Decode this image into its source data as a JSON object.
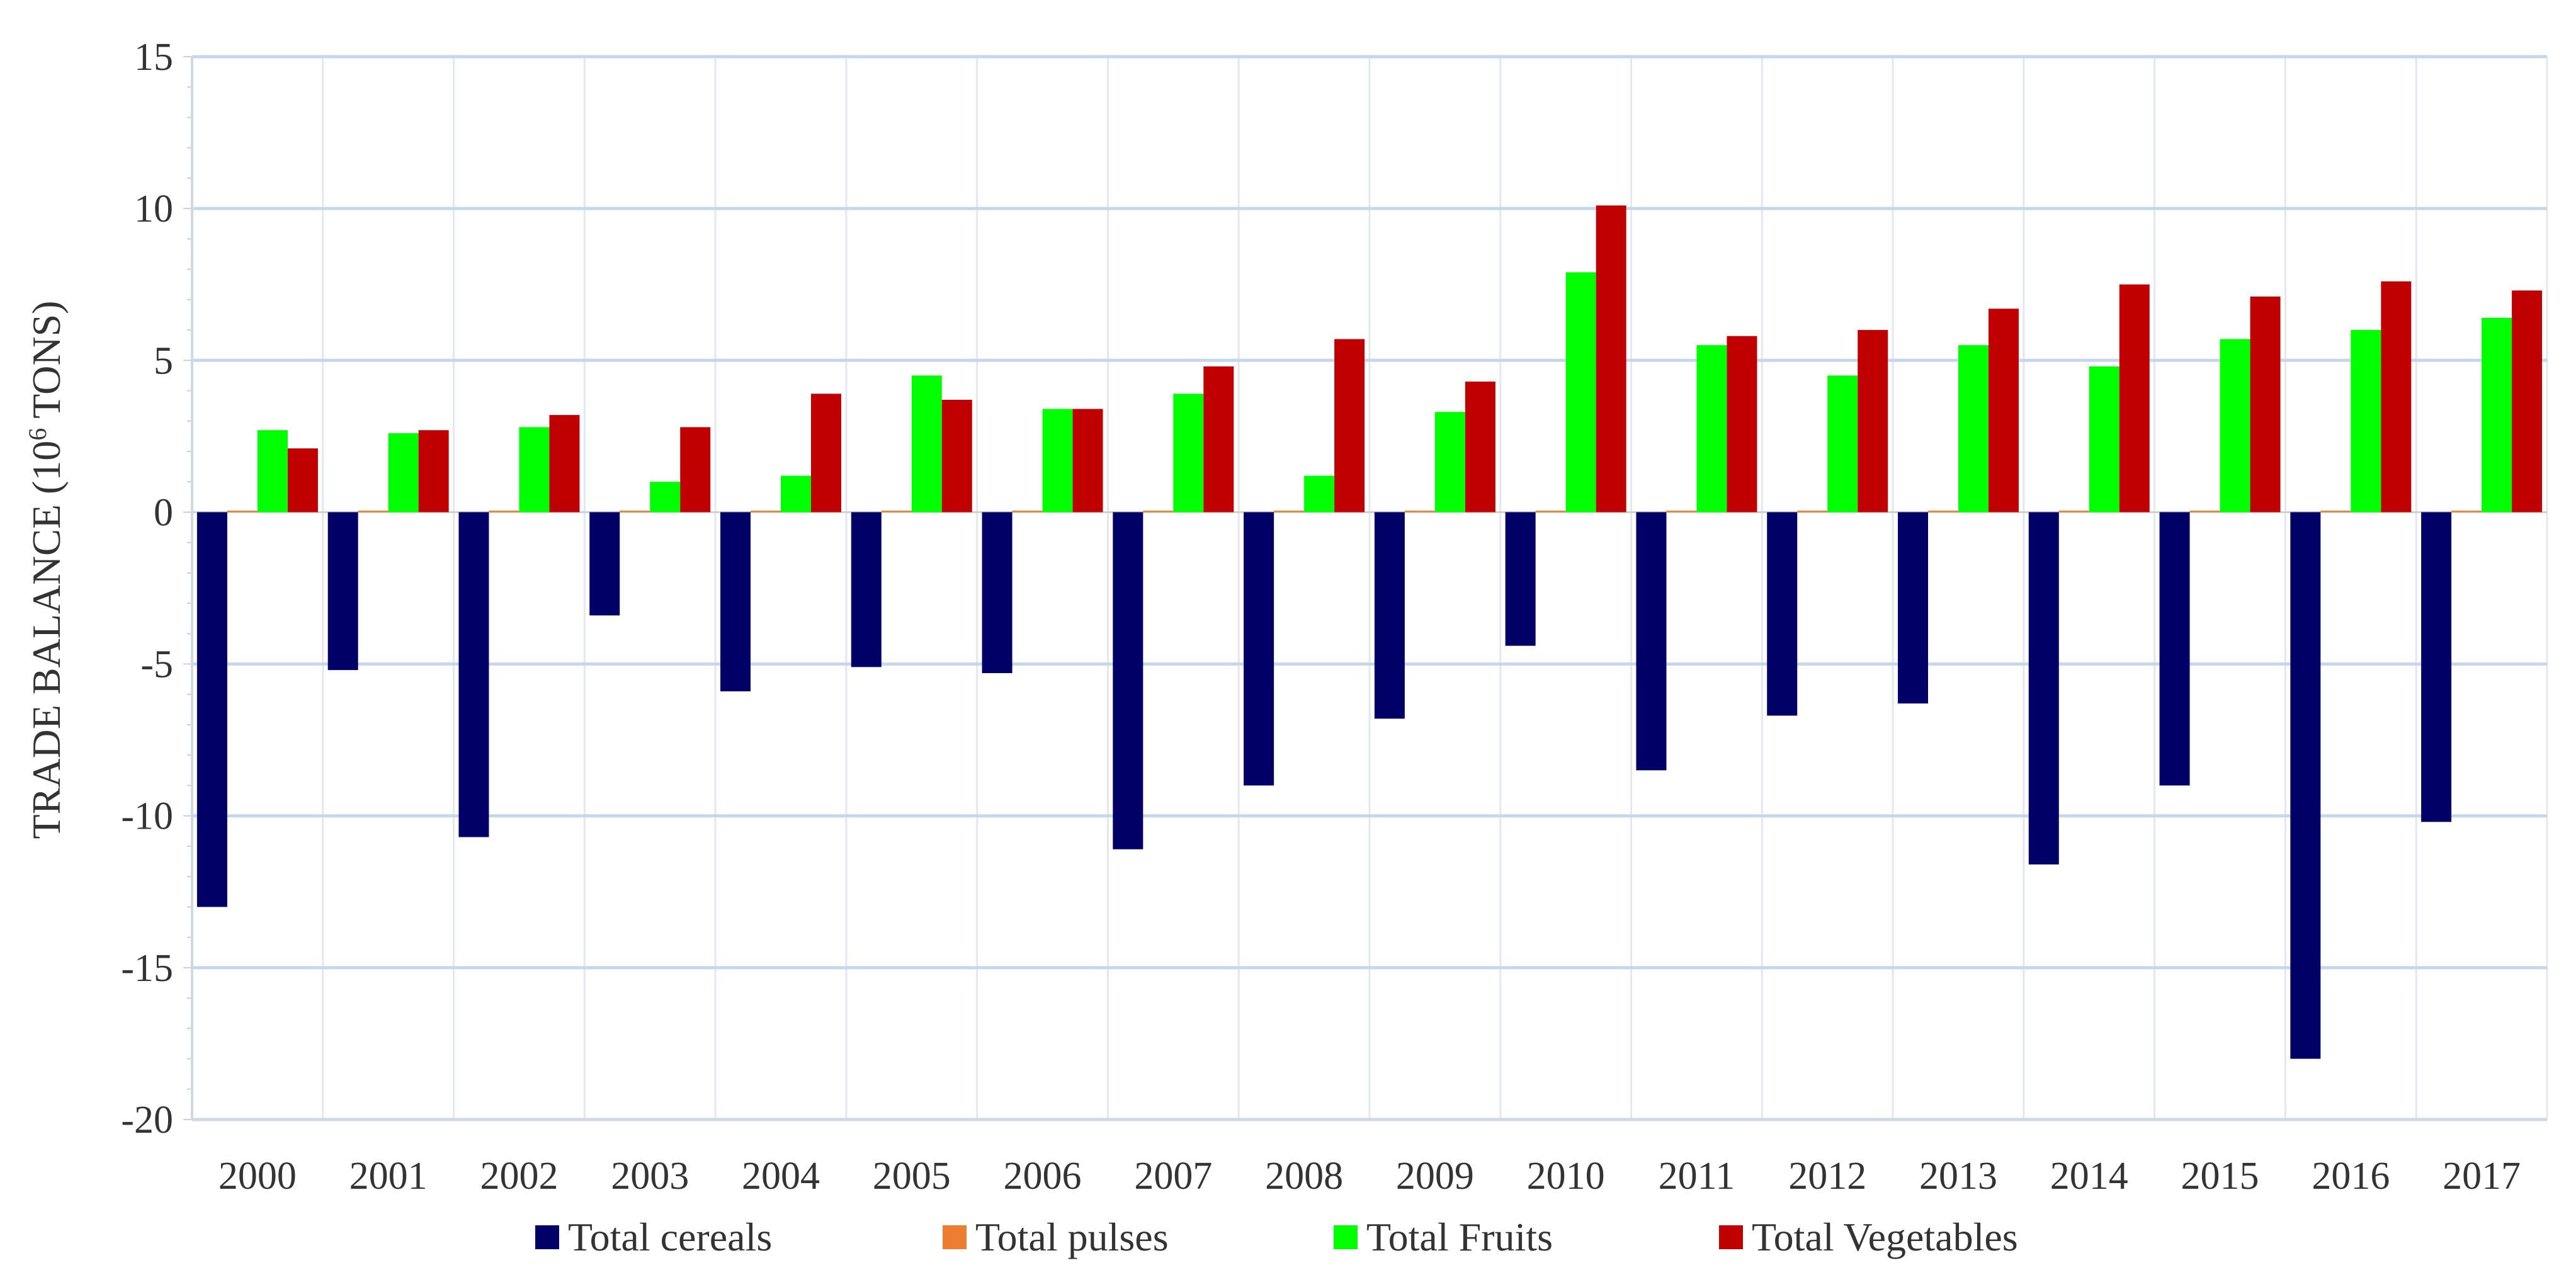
{
  "chart_data": {
    "type": "bar",
    "title": "",
    "xlabel": "",
    "ylabel": "TRADE BALANCE (10",
    "ylabel_sup": "6",
    "ylabel_tail": " TONS)",
    "ylim": [
      -20,
      15
    ],
    "yticks": [
      15,
      10,
      5,
      0,
      -5,
      -10,
      -15,
      -20
    ],
    "grid": true,
    "legend_position": "bottom",
    "categories": [
      "2000",
      "2001",
      "2002",
      "2003",
      "2004",
      "2005",
      "2006",
      "2007",
      "2008",
      "2009",
      "2010",
      "2011",
      "2012",
      "2013",
      "2014",
      "2015",
      "2016",
      "2017"
    ],
    "series": [
      {
        "name": "Total cereals",
        "color": "#000066",
        "values": [
          -13.0,
          -5.2,
          -10.7,
          -3.4,
          -5.9,
          -5.1,
          -5.3,
          -11.1,
          -9.0,
          -6.8,
          -4.4,
          -8.5,
          -6.7,
          -6.3,
          -11.6,
          -9.0,
          -18.0,
          -10.2
        ]
      },
      {
        "name": "Total pulses",
        "color": "#ed7d31",
        "values": [
          0.05,
          0.05,
          0.05,
          0.05,
          0.05,
          0.05,
          0.05,
          0.05,
          0.05,
          0.05,
          0.05,
          0.05,
          0.05,
          0.05,
          0.05,
          0.05,
          0.05,
          0.05
        ]
      },
      {
        "name": "Total Fruits",
        "color": "#00ff00",
        "values": [
          2.7,
          2.6,
          2.8,
          1.0,
          1.2,
          4.5,
          3.4,
          3.9,
          1.2,
          3.3,
          7.9,
          5.5,
          4.5,
          5.5,
          4.8,
          5.7,
          6.0,
          6.4
        ]
      },
      {
        "name": "Total Vegetables",
        "color": "#c00000",
        "values": [
          2.1,
          2.7,
          3.2,
          2.8,
          3.9,
          3.7,
          3.4,
          4.8,
          5.7,
          4.3,
          10.1,
          5.8,
          6.0,
          6.7,
          7.5,
          7.1,
          7.6,
          7.3
        ]
      }
    ]
  }
}
